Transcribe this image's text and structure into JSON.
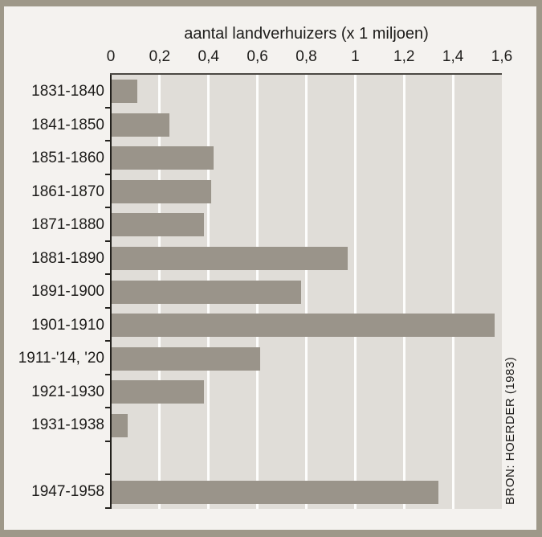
{
  "frame": {
    "border_color": "#9e9889",
    "page_background": "#f4f2ef"
  },
  "chart_data": {
    "type": "bar",
    "orientation": "horizontal",
    "title": "aantal landverhuizers (x 1 miljoen)",
    "categories": [
      "1831-1840",
      "1841-1850",
      "1851-1860",
      "1861-1870",
      "1871-1880",
      "1881-1890",
      "1891-1900",
      "1901-1910",
      "1911-'14, '20",
      "1921-1930",
      "1931-1938",
      "",
      "1947-1958"
    ],
    "values": [
      0.11,
      0.24,
      0.42,
      0.41,
      0.38,
      0.97,
      0.78,
      1.57,
      0.61,
      0.38,
      0.07,
      null,
      1.34
    ],
    "xlabel": "",
    "ylabel": "",
    "xlim": [
      0,
      1.6
    ],
    "x_ticks": [
      0,
      0.2,
      0.4,
      0.6,
      0.8,
      1,
      1.2,
      1.4,
      1.6
    ],
    "x_tick_labels": [
      "0",
      "0,2",
      "0,4",
      "0,6",
      "0,8",
      "1",
      "1,2",
      "1,4",
      "1,6"
    ],
    "grid": "vertical white gridlines at 0.2 intervals",
    "legend": "none",
    "source": "BRON: HOERDER (1983)",
    "colors": {
      "bar": "#9a948a",
      "plot_background": "#e0ddd8",
      "gridline": "#fdfdfc",
      "text": "#1d1c1a"
    }
  }
}
